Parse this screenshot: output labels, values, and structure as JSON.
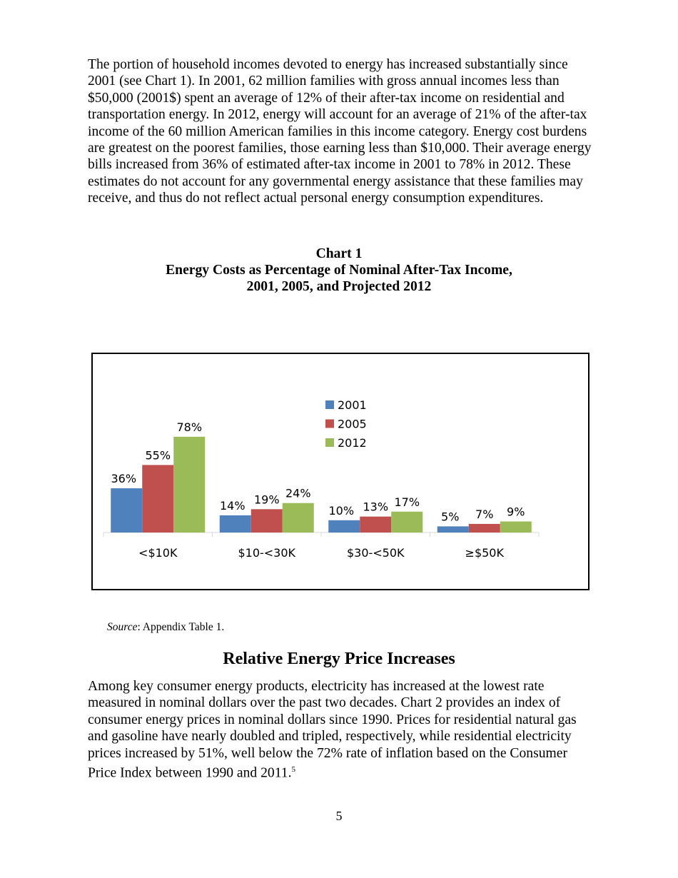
{
  "paragraph1": "The portion of household incomes devoted to energy has increased substantially since 2001 (see Chart 1). In 2001, 62 million families with gross annual incomes less than $50,000 (2001$) spent an average of 12% of their after-tax income on residential and transportation energy. In 2012, energy will account for an average of 21% of the after-tax income of the 60 million American families in this income category. Energy cost burdens are greatest on the poorest families, those earning less than $10,000. Their average energy bills increased from 36% of estimated after-tax income in 2001 to 78% in 2012. These estimates do not account for any governmental energy assistance that these families may receive, and thus do not reflect actual personal energy consumption expenditures.",
  "chart_heading": {
    "label": "Chart 1",
    "title_line1": "Energy Costs as Percentage of Nominal After-Tax Income,",
    "title_line2": "2001, 2005, and Projected 2012"
  },
  "chart_data": {
    "type": "bar",
    "categories": [
      "<$10K",
      "$10-<30K",
      "$30-<50K",
      "≥$50K"
    ],
    "series": [
      {
        "name": "2001",
        "values": [
          36,
          14,
          10,
          5
        ],
        "labels": [
          "36%",
          "14%",
          "10%",
          "5%"
        ],
        "color": "#4F81BD"
      },
      {
        "name": "2005",
        "values": [
          55,
          19,
          13,
          7
        ],
        "labels": [
          "55%",
          "19%",
          "13%",
          "7%"
        ],
        "color": "#C0504D"
      },
      {
        "name": "2012",
        "values": [
          78,
          24,
          17,
          9
        ],
        "labels": [
          "78%",
          "24%",
          "17%",
          "9%"
        ],
        "color": "#9BBB59"
      }
    ],
    "ylim": [
      0,
      100
    ],
    "grid": false,
    "legend": "top-center",
    "data_labels": true
  },
  "source": {
    "label": "Source",
    "text": ": Appendix Table 1."
  },
  "section_heading": "Relative Energy Price Increases",
  "paragraph2": "Among key consumer energy products, electricity has increased at the lowest rate measured in nominal dollars over the past two decades. Chart 2 provides an index of consumer energy prices in nominal dollars since 1990. Prices for residential natural gas and gasoline have nearly doubled and tripled, respectively, while residential electricity prices increased by 51%, well below the 72% rate of inflation based on the Consumer Price Index between 1990 and 2011.",
  "footnote_ref": "5",
  "page_number": "5"
}
